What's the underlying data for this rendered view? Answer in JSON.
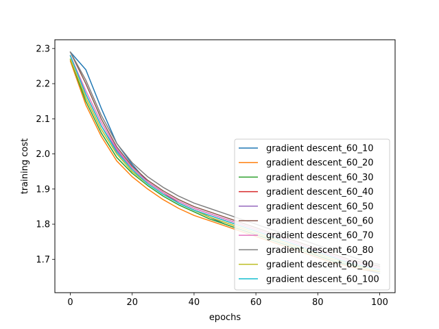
{
  "chart_data": {
    "type": "line",
    "title": "",
    "xlabel": "epochs",
    "ylabel": "training cost",
    "xlim": [
      -5,
      105
    ],
    "ylim": [
      1.605,
      2.325
    ],
    "xticks": [
      0,
      20,
      40,
      60,
      80,
      100
    ],
    "yticks": [
      1.7,
      1.8,
      1.9,
      2.0,
      2.1,
      2.2,
      2.3
    ],
    "ytick_labels": [
      "1.7",
      "1.8",
      "1.9",
      "2.0",
      "2.1",
      "2.2",
      "2.3"
    ],
    "grid": false,
    "legend_position": "lower-right",
    "x": [
      0,
      5,
      10,
      15,
      20,
      25,
      30,
      35,
      40,
      45,
      50,
      55,
      60,
      65,
      70,
      75,
      80,
      85,
      90,
      95,
      100
    ],
    "series": [
      {
        "name": "gradient descent_60_10",
        "color": "#1f77b4",
        "values": [
          2.29,
          2.24,
          2.13,
          2.03,
          1.97,
          1.92,
          1.89,
          1.86,
          1.84,
          1.82,
          1.8,
          1.785,
          1.77,
          1.755,
          1.74,
          1.725,
          1.71,
          1.695,
          1.68,
          1.67,
          1.66
        ]
      },
      {
        "name": "gradient descent_60_20",
        "color": "#ff7f0e",
        "values": [
          2.265,
          2.14,
          2.05,
          1.98,
          1.935,
          1.9,
          1.87,
          1.845,
          1.825,
          1.81,
          1.795,
          1.78,
          1.765,
          1.75,
          1.735,
          1.72,
          1.705,
          1.69,
          1.68,
          1.67,
          1.665
        ]
      },
      {
        "name": "gradient descent_60_30",
        "color": "#2ca02c",
        "values": [
          2.27,
          2.15,
          2.06,
          1.99,
          1.945,
          1.91,
          1.88,
          1.855,
          1.835,
          1.815,
          1.8,
          1.785,
          1.77,
          1.755,
          1.74,
          1.725,
          1.71,
          1.695,
          1.685,
          1.675,
          1.665
        ]
      },
      {
        "name": "gradient descent_60_40",
        "color": "#d62728",
        "values": [
          2.28,
          2.17,
          2.08,
          2.01,
          1.96,
          1.92,
          1.89,
          1.86,
          1.84,
          1.825,
          1.81,
          1.795,
          1.78,
          1.765,
          1.75,
          1.735,
          1.72,
          1.705,
          1.69,
          1.68,
          1.67
        ]
      },
      {
        "name": "gradient descent_60_50",
        "color": "#9467bd",
        "values": [
          2.28,
          2.17,
          2.08,
          2.01,
          1.96,
          1.92,
          1.89,
          1.865,
          1.845,
          1.83,
          1.815,
          1.8,
          1.785,
          1.77,
          1.755,
          1.74,
          1.725,
          1.71,
          1.695,
          1.685,
          1.675
        ]
      },
      {
        "name": "gradient descent_60_60",
        "color": "#8c564b",
        "values": [
          2.29,
          2.2,
          2.1,
          2.02,
          1.965,
          1.925,
          1.895,
          1.87,
          1.85,
          1.835,
          1.82,
          1.805,
          1.79,
          1.775,
          1.76,
          1.745,
          1.73,
          1.715,
          1.7,
          1.69,
          1.68
        ]
      },
      {
        "name": "gradient descent_60_70",
        "color": "#e377c2",
        "values": [
          2.28,
          2.18,
          2.09,
          2.015,
          1.96,
          1.92,
          1.89,
          1.865,
          1.845,
          1.83,
          1.815,
          1.8,
          1.785,
          1.77,
          1.755,
          1.74,
          1.725,
          1.71,
          1.695,
          1.685,
          1.675
        ]
      },
      {
        "name": "gradient descent_60_80",
        "color": "#7f7f7f",
        "values": [
          2.29,
          2.21,
          2.11,
          2.03,
          1.975,
          1.935,
          1.905,
          1.88,
          1.86,
          1.845,
          1.83,
          1.815,
          1.8,
          1.785,
          1.77,
          1.755,
          1.74,
          1.725,
          1.71,
          1.695,
          1.685
        ]
      },
      {
        "name": "gradient descent_60_90",
        "color": "#bcbd22",
        "values": [
          2.27,
          2.16,
          2.07,
          2.0,
          1.95,
          1.915,
          1.885,
          1.86,
          1.84,
          1.82,
          1.805,
          1.79,
          1.775,
          1.76,
          1.745,
          1.73,
          1.715,
          1.7,
          1.69,
          1.675,
          1.665
        ]
      },
      {
        "name": "gradient descent_60_100",
        "color": "#17becf",
        "values": [
          2.28,
          2.17,
          2.08,
          2.005,
          1.955,
          1.915,
          1.885,
          1.86,
          1.84,
          1.825,
          1.81,
          1.795,
          1.78,
          1.765,
          1.75,
          1.735,
          1.72,
          1.705,
          1.69,
          1.68,
          1.67
        ]
      }
    ]
  }
}
